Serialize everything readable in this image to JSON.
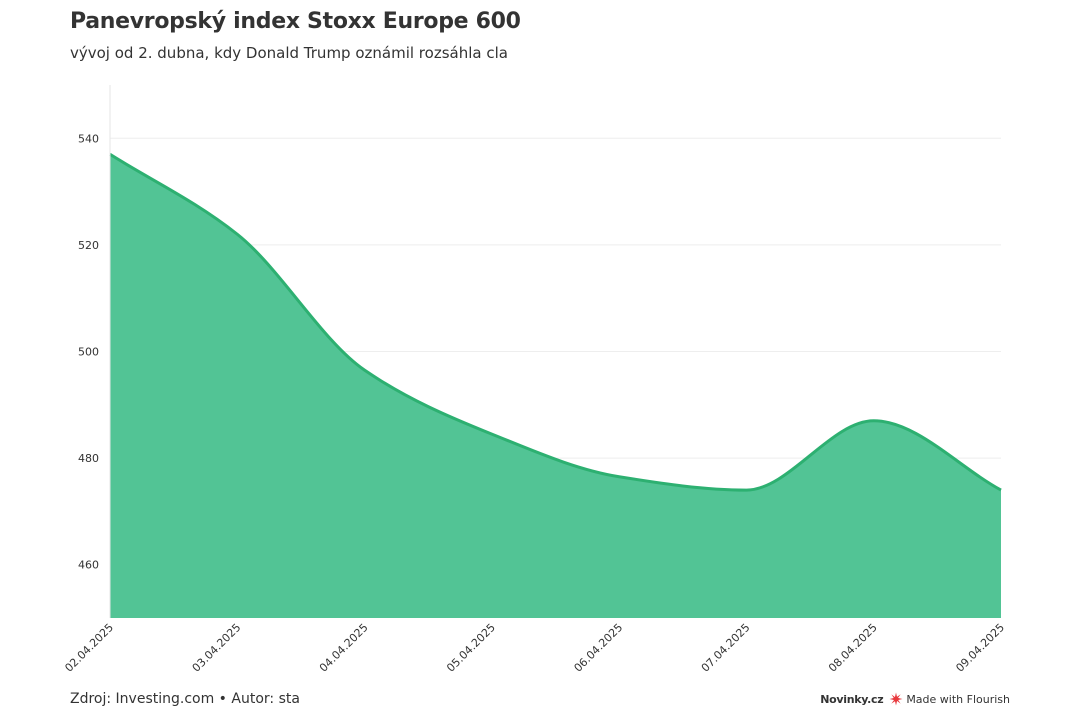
{
  "header": {
    "title": "Panevropský index Stoxx Europe 600",
    "subtitle": "vývoj od 2. dubna, kdy Donald Trump oznámil rozsáhla cla"
  },
  "footer": {
    "source": "Zdroj: Investing.com • Autor: sta",
    "brand": "Novinky.cz",
    "made_with": "Made with Flourish"
  },
  "icons": {
    "flourish_logo": "flourish-star-icon"
  },
  "colors": {
    "area_fill": "#52c495",
    "area_line": "#2db071",
    "gridline": "#eeeeee",
    "flourish_red": "#e8383d"
  },
  "chart_data": {
    "type": "area",
    "title": "Panevropský index Stoxx Europe 600",
    "subtitle": "vývoj od 2. dubna, kdy Donald Trump oznámil rozsáhla cla",
    "xlabel": "",
    "ylabel": "",
    "x": [
      "02.04.2025",
      "03.04.2025",
      "04.04.2025",
      "05.04.2025",
      "06.04.2025",
      "07.04.2025",
      "08.04.2025",
      "09.04.2025"
    ],
    "values": [
      537,
      522,
      496.5,
      484.5,
      476.5,
      474,
      487,
      474
    ],
    "ylim": [
      450,
      550
    ],
    "yticks": [
      460,
      480,
      500,
      520,
      540
    ],
    "grid": true,
    "legend": "none"
  }
}
